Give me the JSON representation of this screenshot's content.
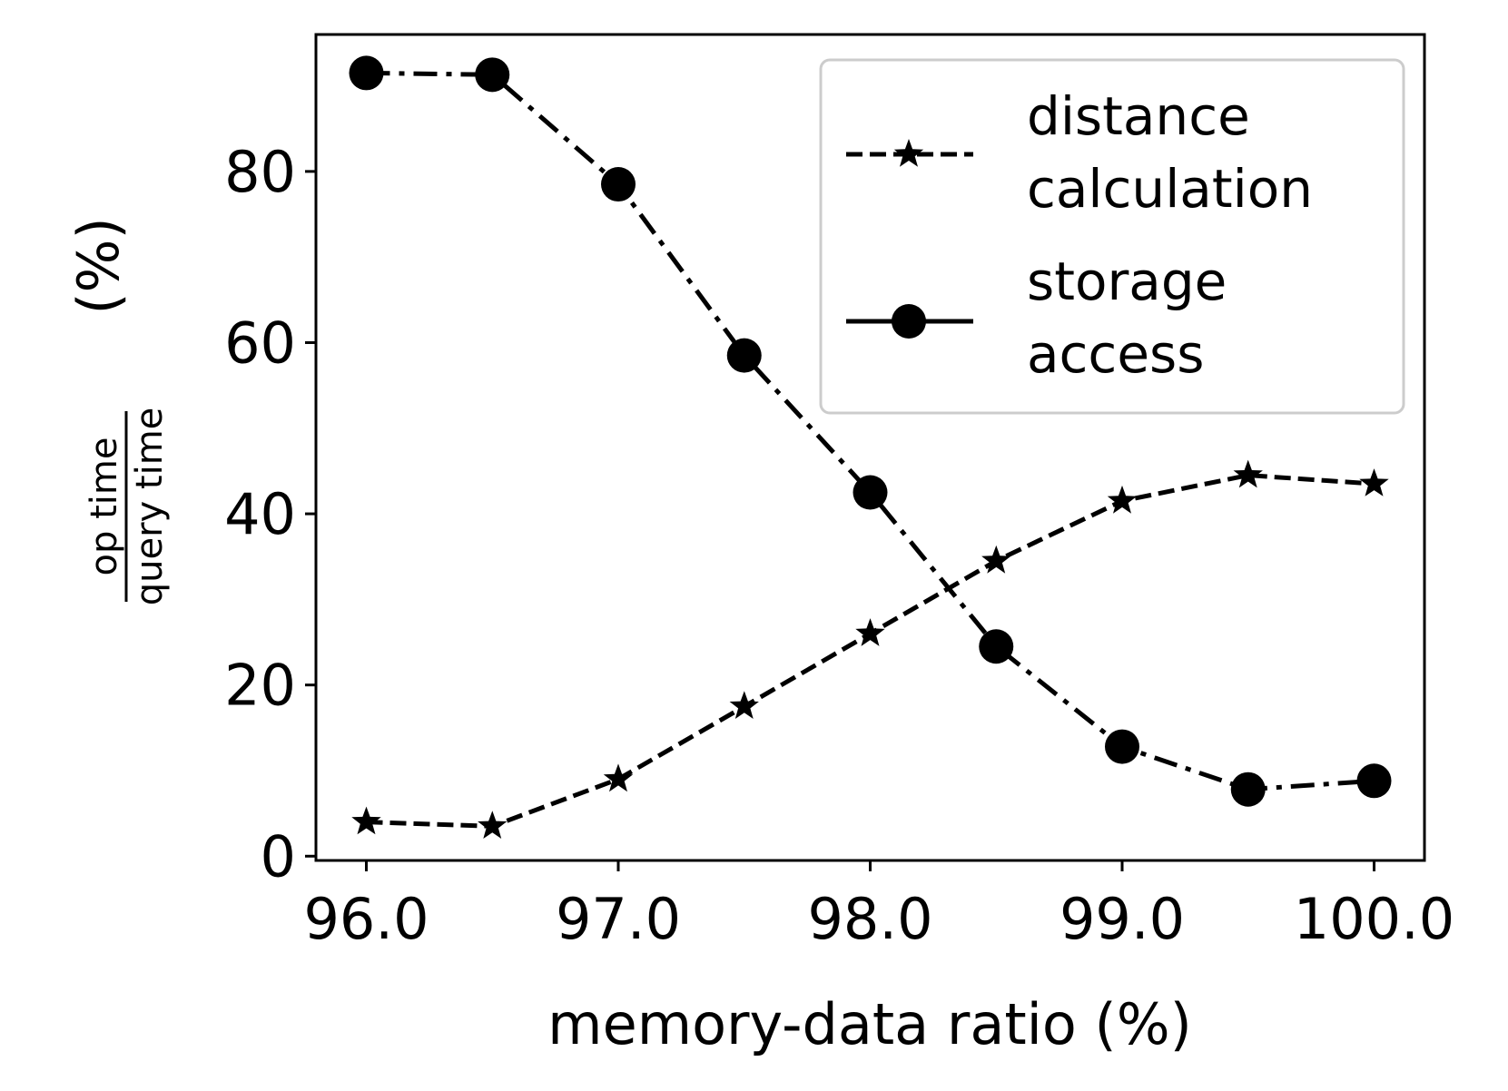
{
  "chart_data": {
    "type": "line",
    "title": "",
    "xlabel": "memory-data ratio (%)",
    "ylabel": {
      "numerator": "op time",
      "denominator": "query time",
      "unit": "(%)"
    },
    "x": [
      96.0,
      96.5,
      97.0,
      97.5,
      98.0,
      98.5,
      99.0,
      99.5,
      100.0
    ],
    "xticks": [
      "96.0",
      "97.0",
      "98.0",
      "99.0",
      "100.0"
    ],
    "xtick_values": [
      96.0,
      97.0,
      98.0,
      99.0,
      100.0
    ],
    "yticks": [
      "0",
      "20",
      "40",
      "60",
      "80"
    ],
    "ytick_values": [
      0,
      20,
      40,
      60,
      80
    ],
    "xlim": [
      95.8,
      100.2
    ],
    "ylim": [
      -0.5,
      96
    ],
    "grid": false,
    "legend_position": "top-right",
    "series": [
      {
        "name": [
          "distance",
          "calculation"
        ],
        "marker": "star",
        "linestyle": "dashed",
        "color": "#000000",
        "values": [
          4.0,
          3.5,
          9.0,
          17.5,
          26.0,
          34.5,
          41.5,
          44.5,
          43.5
        ]
      },
      {
        "name": [
          "storage",
          "access"
        ],
        "marker": "circle",
        "linestyle": "dashdot",
        "color": "#000000",
        "values": [
          91.5,
          91.3,
          78.5,
          58.5,
          42.5,
          24.5,
          12.8,
          7.8,
          8.8
        ]
      }
    ]
  }
}
